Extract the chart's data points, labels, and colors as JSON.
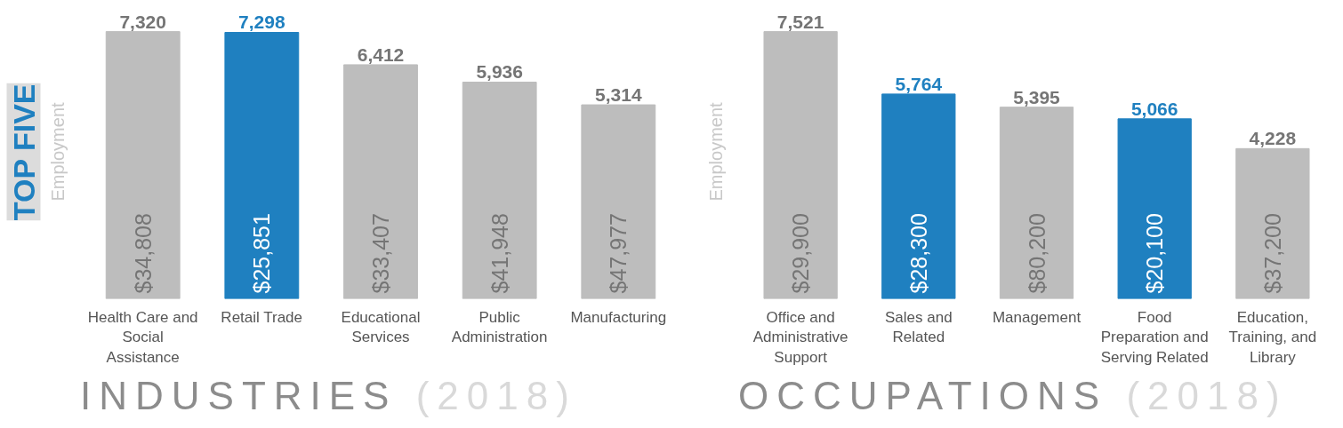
{
  "chart_data": [
    {
      "type": "bar",
      "title": "INDUSTRIES",
      "subtitle": "(2018)",
      "ylabel": "Employment",
      "categories": [
        "Health Care and Social Assistance",
        "Retail Trade",
        "Educational Services",
        "Public Administration",
        "Manufacturing"
      ],
      "values": [
        7320,
        7298,
        6412,
        5936,
        5314
      ],
      "value_labels": [
        "7,320",
        "7,298",
        "6,412",
        "5,936",
        "5,314"
      ],
      "colors": [
        "#bdbdbd",
        "#1f80c0",
        "#bdbdbd",
        "#bdbdbd",
        "#bdbdbd"
      ],
      "tick_labels": "x",
      "grid": false,
      "annotations": [
        "TOP FIVE",
        {
          "text": "$34,808",
          "x": "Health Care and Social Assistance",
          "y": 0
        },
        {
          "text": "$25,851",
          "x": "Retail Trade",
          "y": 0
        },
        {
          "text": "$33,407",
          "x": "Educational Services",
          "y": 0
        },
        {
          "text": "$41,948",
          "x": "Public Administration",
          "y": 0
        },
        {
          "text": "$47,977",
          "x": "Manufacturing",
          "y": 0
        }
      ]
    },
    {
      "type": "bar",
      "title": "OCCUPATIONS",
      "subtitle": "(2018)",
      "ylabel": "Employment",
      "categories": [
        "Office and Administrative Support",
        "Sales and Related",
        "Management",
        "Food Preparation and Serving Related",
        "Education, Training, and Library"
      ],
      "values": [
        7521,
        5764,
        5395,
        5066,
        4228
      ],
      "value_labels": [
        "7,521",
        "5,764",
        "5,395",
        "5,066",
        "4,228"
      ],
      "colors": [
        "#bdbdbd",
        "#1f80c0",
        "#bdbdbd",
        "#1f80c0",
        "#bdbdbd"
      ],
      "tick_labels": "x",
      "grid": false,
      "annotations": [
        {
          "text": "$29,900",
          "x": "Office and Administrative Support",
          "y": 0
        },
        {
          "text": "$28,300",
          "x": "Sales and Related",
          "y": 0
        },
        {
          "text": "$80,200",
          "x": "Management",
          "y": 0
        },
        {
          "text": "$20,100",
          "x": "Food Preparation and Serving Related",
          "y": 0
        },
        {
          "text": "$37,200",
          "x": "Education, Training, and Library",
          "y": 0
        }
      ]
    }
  ]
}
